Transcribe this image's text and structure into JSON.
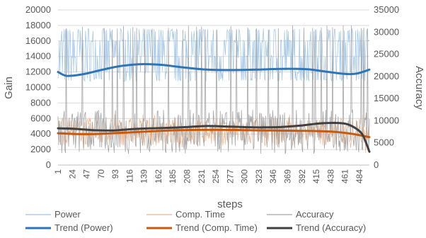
{
  "chart_data": {
    "type": "line",
    "xlabel": "steps",
    "ylabel_left": "Gain",
    "ylabel_right": "Accuracy",
    "ylim_left": [
      0,
      20000
    ],
    "ylim_right": [
      0,
      35000
    ],
    "yticks_left": [
      "0",
      "2000",
      "4000",
      "6000",
      "8000",
      "10000",
      "12000",
      "14000",
      "16000",
      "18000",
      "20000"
    ],
    "yticks_right": [
      "0",
      "5000",
      "10000",
      "15000",
      "20000",
      "25000",
      "30000",
      "35000"
    ],
    "xticks": [
      "1",
      "24",
      "47",
      "70",
      "93",
      "116",
      "139",
      "162",
      "185",
      "208",
      "231",
      "254",
      "277",
      "300",
      "323",
      "346",
      "369",
      "392",
      "415",
      "438",
      "461",
      "484"
    ],
    "x_range": [
      1,
      500
    ],
    "grid": true,
    "legend_position": "bottom",
    "series": [
      {
        "name": "Power",
        "axis": "left",
        "style": "thin",
        "color": "#9dc3e6",
        "approx_range": [
          11000,
          17500
        ],
        "typical_levels": [
          11000,
          12000,
          14000,
          16000,
          17400
        ]
      },
      {
        "name": "Comp. Time",
        "axis": "left",
        "style": "thin",
        "color": "#f4b183",
        "approx_range": [
          800,
          6500
        ]
      },
      {
        "name": "Accuracy",
        "axis": "right",
        "style": "thin",
        "color": "#a6a6a6",
        "approx_range": [
          1500,
          31500
        ],
        "spike_steps": [
          14,
          40,
          75,
          88,
          96,
          106,
          121,
          127,
          140,
          152,
          178,
          201,
          210,
          223,
          231,
          237,
          255,
          278,
          287,
          305,
          319,
          338,
          354,
          377,
          395,
          409,
          413,
          423,
          432,
          441,
          458,
          471,
          487,
          491,
          497
        ]
      },
      {
        "name": "Trend (Power)",
        "axis": "left",
        "style": "thick",
        "color": "#2e75b6",
        "x": [
          1,
          15,
          40,
          70,
          100,
          130,
          150,
          170,
          200,
          240,
          280,
          320,
          360,
          400,
          430,
          460,
          480,
          500
        ],
        "y": [
          12000,
          11500,
          11700,
          12250,
          12750,
          13000,
          13000,
          12900,
          12600,
          12300,
          12250,
          12300,
          12400,
          12350,
          12050,
          11750,
          11800,
          12300
        ]
      },
      {
        "name": "Trend (Comp. Time)",
        "axis": "left",
        "style": "thick",
        "color": "#c55a11",
        "x": [
          1,
          30,
          60,
          100,
          150,
          200,
          250,
          300,
          350,
          400,
          440,
          470,
          490,
          500
        ],
        "y": [
          4100,
          4000,
          4000,
          4150,
          4350,
          4500,
          4550,
          4500,
          4450,
          4400,
          4300,
          4050,
          3750,
          3600
        ]
      },
      {
        "name": "Trend (Accuracy)",
        "axis": "right",
        "style": "thick",
        "color": "#404040",
        "x": [
          1,
          30,
          60,
          90,
          120,
          150,
          180,
          210,
          240,
          270,
          300,
          330,
          360,
          390,
          420,
          450,
          465,
          480,
          490,
          500
        ],
        "y": [
          8300,
          8150,
          7850,
          7800,
          8100,
          8300,
          8400,
          8600,
          8800,
          8700,
          8550,
          8500,
          8600,
          8900,
          9400,
          9500,
          9200,
          8100,
          6600,
          3000
        ]
      }
    ]
  }
}
